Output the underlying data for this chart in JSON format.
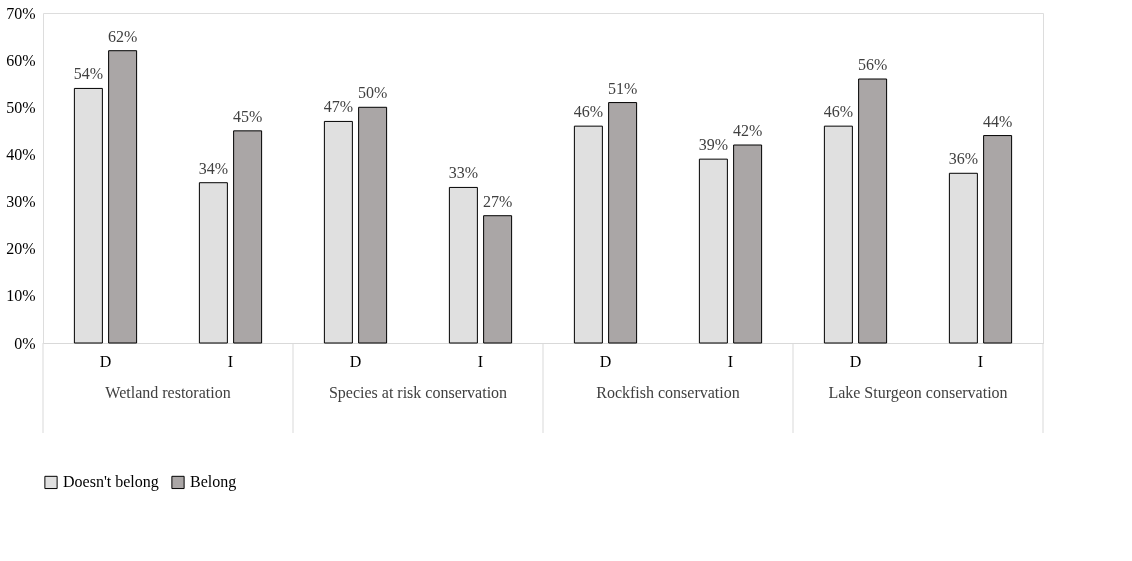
{
  "chart_data": {
    "type": "bar",
    "categories": [
      "D",
      "I",
      "D",
      "I",
      "D",
      "I",
      "D",
      "I"
    ],
    "annotations": [
      "Wetland restoration",
      "Species at risk conservation",
      "Rockfish conservation",
      "Lake Sturgeon conservation"
    ],
    "series": [
      {
        "name": "Doesn't belong",
        "color": "#e0e0e0",
        "values": [
          54,
          34,
          47,
          33,
          46,
          39,
          46,
          36
        ],
        "value_labels": [
          "54%",
          "34%",
          "47%",
          "33%",
          "46%",
          "39%",
          "46%",
          "36%"
        ]
      },
      {
        "name": "Belong",
        "color": "#aaa6a6",
        "values": [
          62,
          45,
          50,
          27,
          51,
          42,
          56,
          44
        ],
        "value_labels": [
          "62%",
          "45%",
          "50%",
          "27%",
          "51%",
          "42%",
          "56%",
          "44%"
        ]
      }
    ],
    "ylim": [
      0,
      70
    ],
    "yticks": [
      {
        "value": 0,
        "label": "0%"
      },
      {
        "value": 10,
        "label": "10%"
      },
      {
        "value": 20,
        "label": "20%"
      },
      {
        "value": 30,
        "label": "30%"
      },
      {
        "value": 40,
        "label": "40%"
      },
      {
        "value": 50,
        "label": "50%"
      },
      {
        "value": 60,
        "label": "60%"
      },
      {
        "value": 70,
        "label": "70%"
      }
    ],
    "legend": "bottom",
    "grid": false
  }
}
